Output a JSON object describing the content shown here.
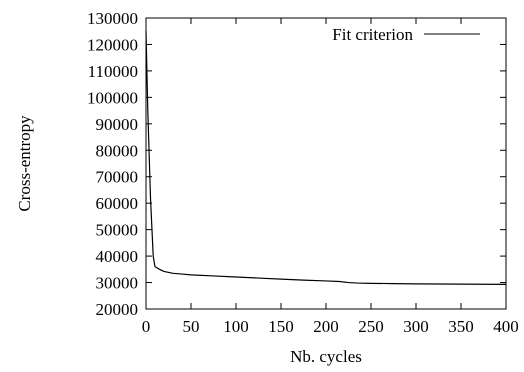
{
  "chart_data": {
    "type": "line",
    "title": "",
    "xlabel": "Nb. cycles",
    "ylabel": "Cross-entropy",
    "xlim": [
      0,
      400
    ],
    "ylim": [
      20000,
      130000
    ],
    "x_ticks": [
      "0",
      "50",
      "100",
      "150",
      "200",
      "250",
      "300",
      "350",
      "400"
    ],
    "y_ticks": [
      "20000",
      "30000",
      "40000",
      "50000",
      "60000",
      "70000",
      "80000",
      "90000",
      "100000",
      "110000",
      "120000",
      "130000"
    ],
    "grid": false,
    "legend_position": "top-right",
    "series": [
      {
        "name": "Fit criterion",
        "color": "#000000",
        "x": [
          0,
          2,
          5,
          8,
          10,
          15,
          20,
          30,
          40,
          50,
          75,
          100,
          125,
          150,
          175,
          200,
          215,
          225,
          235,
          250,
          275,
          300,
          325,
          350,
          375,
          400
        ],
        "y": [
          125000,
          95000,
          62000,
          40000,
          36000,
          35000,
          34200,
          33500,
          33200,
          32900,
          32500,
          32100,
          31700,
          31300,
          30900,
          30600,
          30400,
          30000,
          29800,
          29700,
          29600,
          29500,
          29450,
          29400,
          29350,
          29300
        ]
      }
    ]
  }
}
